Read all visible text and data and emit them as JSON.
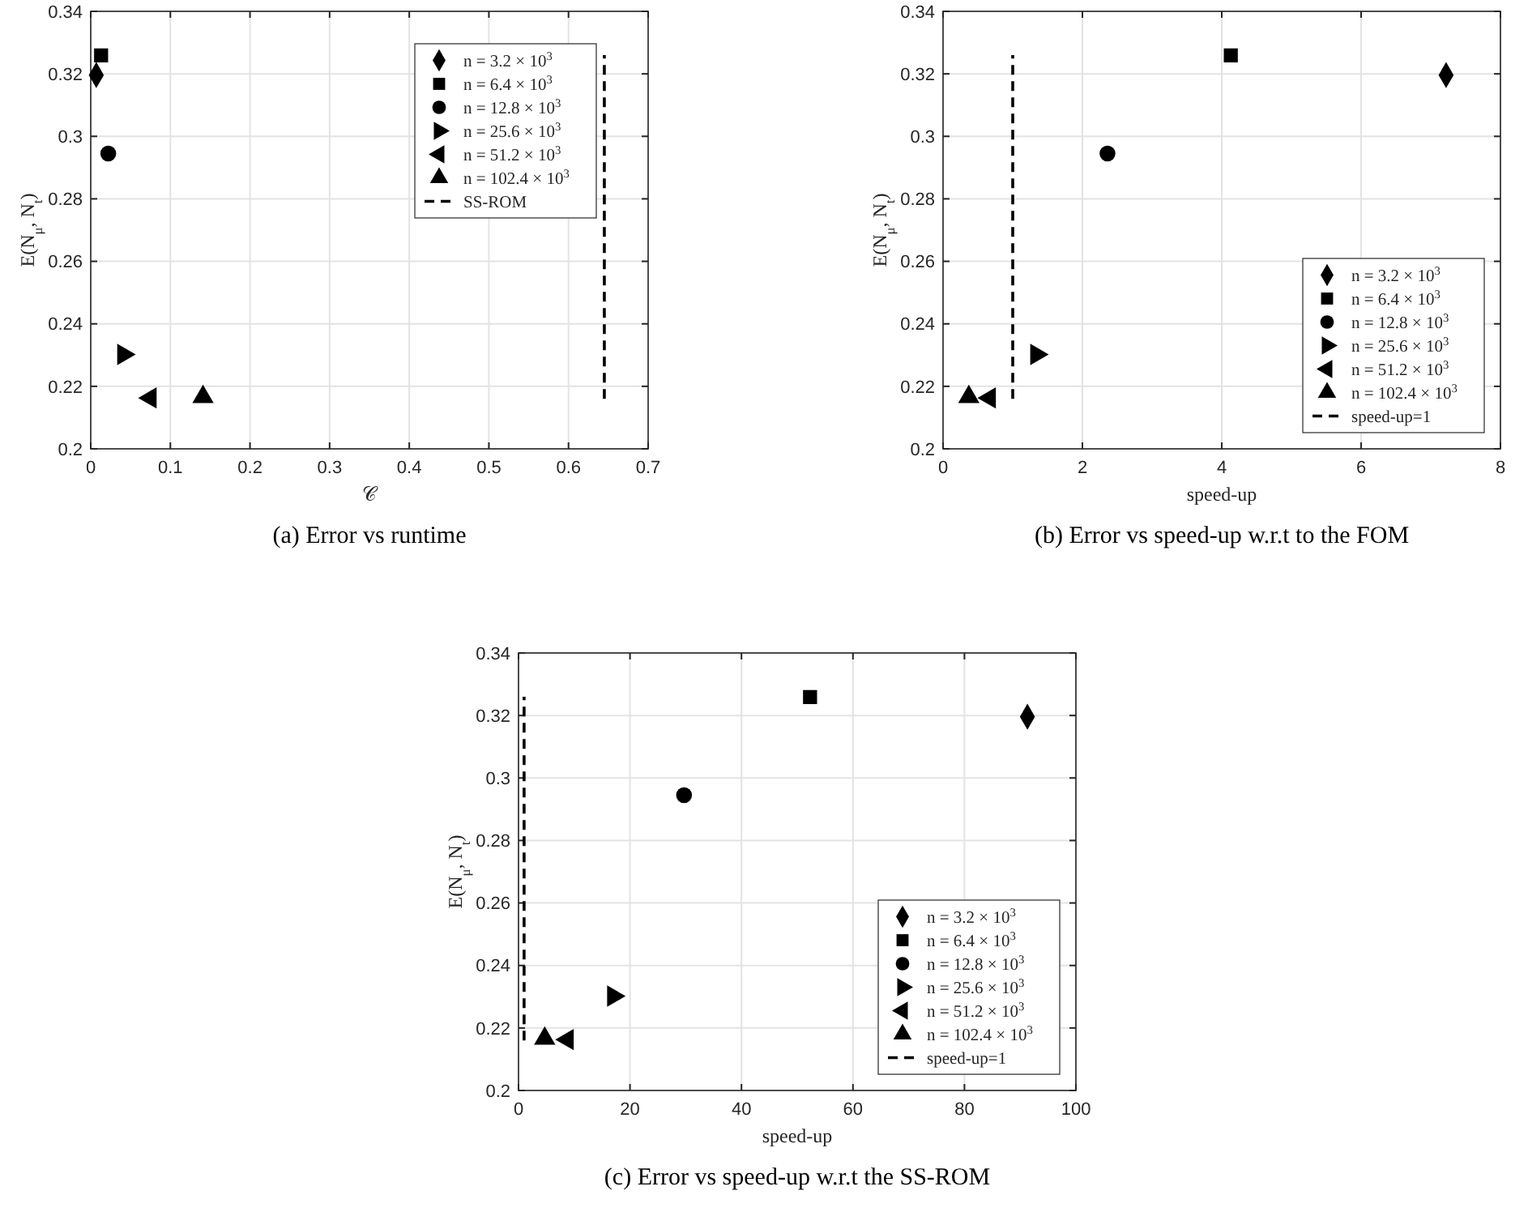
{
  "chart_data": [
    {
      "type": "scatter",
      "title": "(a) Error vs runtime",
      "xlabel": "𝒞",
      "ylabel": "E(N$_{μ}$, N$_{t}$)",
      "xlim": [
        0,
        0.7
      ],
      "xticks": [
        0,
        0.1,
        0.2,
        0.3,
        0.4,
        0.5,
        0.6,
        0.7
      ],
      "ylim": [
        0.2,
        0.34
      ],
      "yticks": [
        0.2,
        0.22,
        0.24,
        0.26,
        0.28,
        0.3,
        0.32,
        0.34
      ],
      "grid": true,
      "legend": "top right",
      "series": [
        {
          "name": "n = 3.2 × 10$^{3}$",
          "color": "#000000",
          "marker": "diamond",
          "x": [
            0.007
          ],
          "values": [
            0.3196
          ]
        },
        {
          "name": "n = 6.4 × 10$^{3}$",
          "color": "#000000",
          "marker": "square",
          "x": [
            0.013
          ],
          "values": [
            0.3259
          ]
        },
        {
          "name": "n = 12.8 × 10$^{3}$",
          "color": "#000000",
          "marker": "circle",
          "x": [
            0.022
          ],
          "values": [
            0.2945
          ]
        },
        {
          "name": "n = 25.6 × 10$^{3}$",
          "color": "#000000",
          "marker": "triangle-right",
          "x": [
            0.041
          ],
          "values": [
            0.2302
          ]
        },
        {
          "name": "n = 51.2 × 10$^{3}$",
          "color": "#000000",
          "marker": "triangle-left",
          "x": [
            0.075
          ],
          "values": [
            0.2163
          ]
        },
        {
          "name": "n = 102.4 × 10$^{3}$",
          "color": "#000000",
          "marker": "triangle",
          "x": [
            0.141
          ],
          "values": [
            0.2166
          ]
        },
        {
          "name": "SS-ROM",
          "type": "line",
          "color": "#000000",
          "marker": "none",
          "line_style": "dashed",
          "x": [
            0.645,
            0.645
          ],
          "values": [
            0.216,
            0.326
          ]
        }
      ]
    },
    {
      "type": "scatter",
      "title": "(b) Error vs speed-up w.r.t to the FOM",
      "xlabel": "speed-up",
      "ylabel": "E(N$_{μ}$, N$_{t}$)",
      "xlim": [
        0,
        8
      ],
      "xticks": [
        0,
        2,
        4,
        6,
        8
      ],
      "ylim": [
        0.2,
        0.34
      ],
      "yticks": [
        0.2,
        0.22,
        0.24,
        0.26,
        0.28,
        0.3,
        0.32,
        0.34
      ],
      "grid": true,
      "legend": "bottom right",
      "series": [
        {
          "name": "n = 3.2 × 10$^{3}$",
          "color": "#000000",
          "marker": "diamond",
          "x": [
            7.22
          ],
          "values": [
            0.3196
          ]
        },
        {
          "name": "n = 6.4 × 10$^{3}$",
          "color": "#000000",
          "marker": "square",
          "x": [
            4.13
          ],
          "values": [
            0.3259
          ]
        },
        {
          "name": "n = 12.8 × 10$^{3}$",
          "color": "#000000",
          "marker": "circle",
          "x": [
            2.36
          ],
          "values": [
            0.2945
          ]
        },
        {
          "name": "n = 25.6 × 10$^{3}$",
          "color": "#000000",
          "marker": "triangle-right",
          "x": [
            1.34
          ],
          "values": [
            0.2302
          ]
        },
        {
          "name": "n = 51.2 × 10$^{3}$",
          "color": "#000000",
          "marker": "triangle-left",
          "x": [
            0.67
          ],
          "values": [
            0.2163
          ]
        },
        {
          "name": "n = 102.4 × 10$^{3}$",
          "color": "#000000",
          "marker": "triangle",
          "x": [
            0.37
          ],
          "values": [
            0.2166
          ]
        },
        {
          "name": "speed-up=1",
          "type": "line",
          "color": "#000000",
          "marker": "none",
          "line_style": "dashed",
          "x": [
            1,
            1
          ],
          "values": [
            0.216,
            0.326
          ]
        }
      ]
    },
    {
      "type": "scatter",
      "title": "(c) Error vs speed-up w.r.t the SS-ROM",
      "xlabel": "speed-up",
      "ylabel": "E(N$_{μ}$, N$_{t}$)",
      "xlim": [
        0,
        100
      ],
      "xticks": [
        0,
        20,
        40,
        60,
        80,
        100
      ],
      "ylim": [
        0.2,
        0.34
      ],
      "yticks": [
        0.2,
        0.22,
        0.24,
        0.26,
        0.28,
        0.3,
        0.32,
        0.34
      ],
      "grid": true,
      "legend": "bottom right",
      "series": [
        {
          "name": "n = 3.2 × 10$^{3}$",
          "color": "#000000",
          "marker": "diamond",
          "x": [
            91.3
          ],
          "values": [
            0.3196
          ]
        },
        {
          "name": "n = 6.4 × 10$^{3}$",
          "color": "#000000",
          "marker": "square",
          "x": [
            52.3
          ],
          "values": [
            0.3259
          ]
        },
        {
          "name": "n = 12.8 × 10$^{3}$",
          "color": "#000000",
          "marker": "circle",
          "x": [
            29.7
          ],
          "values": [
            0.2945
          ]
        },
        {
          "name": "n = 25.6 × 10$^{3}$",
          "color": "#000000",
          "marker": "triangle-right",
          "x": [
            17
          ],
          "values": [
            0.2302
          ]
        },
        {
          "name": "n = 51.2 × 10$^{3}$",
          "color": "#000000",
          "marker": "triangle-left",
          "x": [
            8.8
          ],
          "values": [
            0.2163
          ]
        },
        {
          "name": "n = 102.4 × 10$^{3}$",
          "color": "#000000",
          "marker": "triangle",
          "x": [
            4.7
          ],
          "values": [
            0.2166
          ]
        },
        {
          "name": "speed-up=1",
          "type": "line",
          "color": "#000000",
          "marker": "none",
          "line_style": "dashed",
          "x": [
            1,
            1
          ],
          "values": [
            0.216,
            0.326
          ]
        }
      ]
    }
  ]
}
